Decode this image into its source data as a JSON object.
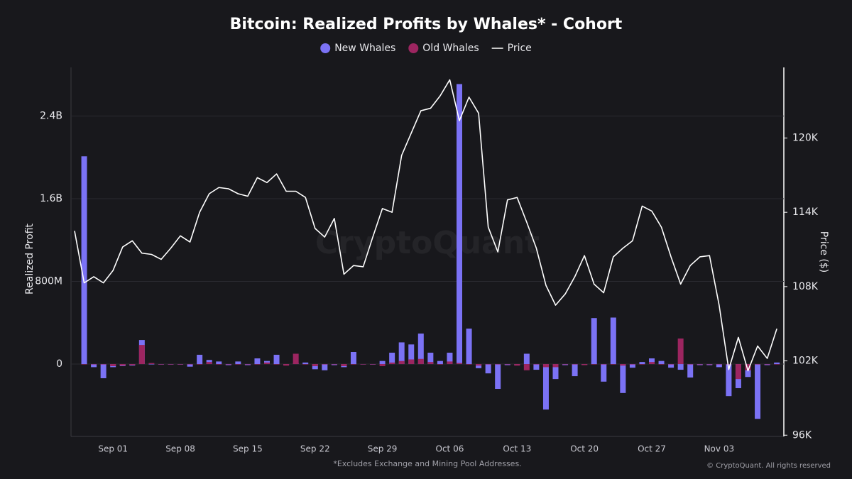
{
  "chart_data": {
    "type": "bar",
    "title": "Bitcoin: Realized Profits by Whales* - Cohort",
    "watermark": "CryptoQuant",
    "footnote": "*Excludes Exchange and Mining Pool Addresses.",
    "copyright": "© CryptoQuant. All rights reserved",
    "y_label": "Realized Profit",
    "y2_label": "Price ($)",
    "grid": true,
    "categories": [
      null,
      null,
      null,
      null,
      "Sep 01",
      null,
      null,
      null,
      null,
      null,
      null,
      "Sep 08",
      null,
      null,
      null,
      null,
      null,
      null,
      "Sep 15",
      null,
      null,
      null,
      null,
      null,
      null,
      "Sep 22",
      null,
      null,
      null,
      null,
      null,
      null,
      "Sep 29",
      null,
      null,
      null,
      null,
      null,
      null,
      "Oct 06",
      null,
      null,
      null,
      null,
      null,
      null,
      "Oct 13",
      null,
      null,
      null,
      null,
      null,
      null,
      "Oct 20",
      null,
      null,
      null,
      null,
      null,
      null,
      "Oct 27",
      null,
      null,
      null,
      null,
      null,
      null,
      "Nov 03",
      null,
      null,
      null,
      null,
      null,
      null
    ],
    "ylim": [
      -700000000,
      2870000000
    ],
    "yticks": [
      0,
      {
        "value": 800000000,
        "label": "800M"
      },
      {
        "value": 1600000000,
        "label": "1.6B"
      },
      {
        "value": 2400000000,
        "label": "2.4B"
      }
    ],
    "y2lim": [
      95900,
      125700
    ],
    "y2ticks": [
      {
        "value": 96000,
        "label": "96K"
      },
      {
        "value": 102000,
        "label": "102K"
      },
      {
        "value": 108000,
        "label": "108K"
      },
      {
        "value": 114000,
        "label": "114K"
      },
      {
        "value": 120000,
        "label": "120K"
      }
    ],
    "series": [
      {
        "name": "New Whales",
        "color": "#7b72f5",
        "values": [
          null,
          2010000000,
          -30000000,
          -137000000,
          -30000000,
          -20000000,
          -15000000,
          233000000,
          0,
          -5000000,
          -5000000,
          -5000000,
          -25000000,
          90000000,
          40000000,
          25000000,
          -10000000,
          25000000,
          -10000000,
          55000000,
          30000000,
          90000000,
          -10000000,
          10000000,
          15000000,
          -50000000,
          -60000000,
          -10000000,
          -30000000,
          117000000,
          0,
          -5000000,
          30000000,
          110000000,
          210000000,
          190000000,
          295000000,
          110000000,
          30000000,
          110000000,
          2709000000,
          343000000,
          -40000000,
          -90000000,
          -240000000,
          -10000000,
          -10000000,
          100000000,
          -55000000,
          -440000000,
          -145000000,
          -10000000,
          -117000000,
          -10000000,
          445000000,
          -170000000,
          450000000,
          -280000000,
          -35000000,
          20000000,
          55000000,
          30000000,
          -35000000,
          -55000000,
          -130000000,
          -10000000,
          -10000000,
          -30000000,
          -310000000,
          -233000000,
          -125000000,
          -530000000,
          -10000000,
          15000000
        ]
      },
      {
        "name": "Old Whales",
        "color": "#9c2560",
        "values": [
          null,
          0,
          0,
          0,
          -20000000,
          -15000000,
          -10000000,
          185000000,
          10000000,
          0,
          0,
          0,
          0,
          0,
          20000000,
          0,
          0,
          0,
          0,
          0,
          15000000,
          0,
          -15000000,
          100000000,
          0,
          -20000000,
          0,
          0,
          -20000000,
          0,
          0,
          0,
          -20000000,
          15000000,
          30000000,
          45000000,
          50000000,
          20000000,
          0,
          25000000,
          10000000,
          0,
          -15000000,
          0,
          0,
          0,
          -15000000,
          -60000000,
          0,
          -30000000,
          -30000000,
          0,
          0,
          -10000000,
          0,
          0,
          0,
          -15000000,
          0,
          0,
          20000000,
          0,
          0,
          247000000,
          0,
          0,
          0,
          0,
          0,
          -145000000,
          -60000000,
          0,
          0,
          0
        ]
      },
      {
        "name": "Price",
        "type": "line",
        "axis": "y2",
        "color": "#ffffff",
        "values": [
          112500,
          108300,
          108800,
          108300,
          109300,
          111200,
          111700,
          110700,
          110600,
          110200,
          111100,
          112100,
          111600,
          114000,
          115500,
          116000,
          115900,
          115500,
          115300,
          116800,
          116400,
          117100,
          115700,
          115700,
          115200,
          112700,
          112000,
          113500,
          109000,
          109700,
          109600,
          112000,
          114300,
          114000,
          118600,
          120400,
          122200,
          122400,
          123400,
          124700,
          121400,
          123300,
          122000,
          112800,
          110800,
          115000,
          115200,
          113200,
          111100,
          108100,
          106500,
          107400,
          108800,
          110500,
          108200,
          107500,
          110400,
          111100,
          111700,
          114500,
          114100,
          112800,
          110400,
          108200,
          109700,
          110400,
          110500,
          106500,
          101300,
          103900,
          101200,
          103200,
          102200,
          104600
        ]
      }
    ]
  }
}
